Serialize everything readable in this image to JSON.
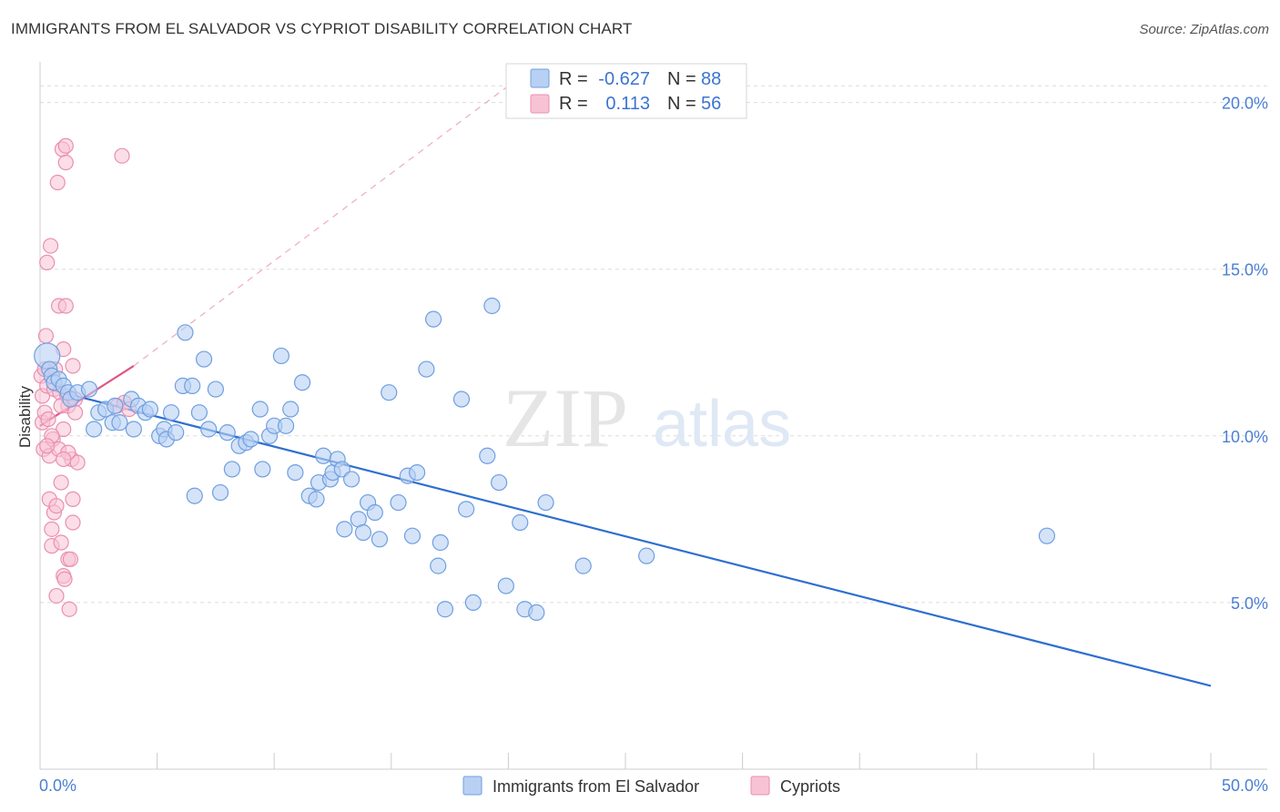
{
  "title": "IMMIGRANTS FROM EL SALVADOR VS CYPRIOT DISABILITY CORRELATION CHART",
  "source": "Source: ZipAtlas.com",
  "watermark": {
    "zip": "ZIP",
    "atlas": "atlas"
  },
  "colors": {
    "blue_fill": "#b8d0f3",
    "blue_stroke": "#6f9fe0",
    "blue_line": "#2e6fd0",
    "pink_fill": "#f7c3d4",
    "pink_stroke": "#ea8fb0",
    "pink_line": "#e05585",
    "grid": "#dcdcdc",
    "tick_text": "#4a7fd4"
  },
  "legend_top": {
    "rows": [
      {
        "r_label": "R =",
        "r_value": "-0.627",
        "n_label": "N =",
        "n_value": "88"
      },
      {
        "r_label": "R =",
        "r_value": "0.113",
        "n_label": "N =",
        "n_value": "56"
      }
    ]
  },
  "chart_data": {
    "type": "scatter",
    "title": "IMMIGRANTS FROM EL SALVADOR VS CYPRIOT DISABILITY CORRELATION CHART",
    "xlabel": "",
    "ylabel": "Disability",
    "xlim": [
      0,
      50
    ],
    "ylim": [
      0,
      21
    ],
    "x_tick_labels": [
      "0.0%",
      "50.0%"
    ],
    "y_ticks": [
      5,
      10,
      15,
      20
    ],
    "y_tick_labels": [
      "5.0%",
      "10.0%",
      "15.0%",
      "20.0%"
    ],
    "grid": "horizontal dashed",
    "legend": "bottom-center",
    "series": [
      {
        "name": "Immigrants from El Salvador",
        "color": "#b8d0f3",
        "R": -0.627,
        "N": 88,
        "trend": {
          "x": [
            0.4,
            50.0
          ],
          "y": [
            11.4,
            2.5
          ]
        },
        "points": [
          [
            0.3,
            12.4
          ],
          [
            0.4,
            12.0
          ],
          [
            0.5,
            11.8
          ],
          [
            0.6,
            11.6
          ],
          [
            0.8,
            11.7
          ],
          [
            1.0,
            11.5
          ],
          [
            1.2,
            11.3
          ],
          [
            1.3,
            11.1
          ],
          [
            1.6,
            11.3
          ],
          [
            2.1,
            11.4
          ],
          [
            2.3,
            10.2
          ],
          [
            2.5,
            10.7
          ],
          [
            2.8,
            10.8
          ],
          [
            3.2,
            10.9
          ],
          [
            3.1,
            10.4
          ],
          [
            3.4,
            10.4
          ],
          [
            3.9,
            11.1
          ],
          [
            4.0,
            10.2
          ],
          [
            4.2,
            10.9
          ],
          [
            4.5,
            10.7
          ],
          [
            4.7,
            10.8
          ],
          [
            5.1,
            10.0
          ],
          [
            5.3,
            10.2
          ],
          [
            5.4,
            9.9
          ],
          [
            5.6,
            10.7
          ],
          [
            5.8,
            10.1
          ],
          [
            6.1,
            11.5
          ],
          [
            6.2,
            13.1
          ],
          [
            6.5,
            11.5
          ],
          [
            6.6,
            8.2
          ],
          [
            6.8,
            10.7
          ],
          [
            7.0,
            12.3
          ],
          [
            7.2,
            10.2
          ],
          [
            7.5,
            11.4
          ],
          [
            7.7,
            8.3
          ],
          [
            8.0,
            10.1
          ],
          [
            8.2,
            9.0
          ],
          [
            8.5,
            9.7
          ],
          [
            8.8,
            9.8
          ],
          [
            9.0,
            9.9
          ],
          [
            9.4,
            10.8
          ],
          [
            9.5,
            9.0
          ],
          [
            9.8,
            10.0
          ],
          [
            10.0,
            10.3
          ],
          [
            10.3,
            12.4
          ],
          [
            10.5,
            10.3
          ],
          [
            10.7,
            10.8
          ],
          [
            10.9,
            8.9
          ],
          [
            11.2,
            11.6
          ],
          [
            11.5,
            8.2
          ],
          [
            11.8,
            8.1
          ],
          [
            11.9,
            8.6
          ],
          [
            12.1,
            9.4
          ],
          [
            12.4,
            8.7
          ],
          [
            12.5,
            8.9
          ],
          [
            12.7,
            9.3
          ],
          [
            12.9,
            9.0
          ],
          [
            13.0,
            7.2
          ],
          [
            13.3,
            8.7
          ],
          [
            13.6,
            7.5
          ],
          [
            13.8,
            7.1
          ],
          [
            14.0,
            8.0
          ],
          [
            14.3,
            7.7
          ],
          [
            14.5,
            6.9
          ],
          [
            14.9,
            11.3
          ],
          [
            15.3,
            8.0
          ],
          [
            15.7,
            8.8
          ],
          [
            15.9,
            7.0
          ],
          [
            16.1,
            8.9
          ],
          [
            16.5,
            12.0
          ],
          [
            16.8,
            13.5
          ],
          [
            17.1,
            6.8
          ],
          [
            17.0,
            6.1
          ],
          [
            17.3,
            4.8
          ],
          [
            18.0,
            11.1
          ],
          [
            18.2,
            7.8
          ],
          [
            18.5,
            5.0
          ],
          [
            19.1,
            9.4
          ],
          [
            19.3,
            13.9
          ],
          [
            19.6,
            8.6
          ],
          [
            19.9,
            5.5
          ],
          [
            20.5,
            7.4
          ],
          [
            20.7,
            4.8
          ],
          [
            21.2,
            4.7
          ],
          [
            21.6,
            8.0
          ],
          [
            23.2,
            6.1
          ],
          [
            25.9,
            6.4
          ],
          [
            43.0,
            7.0
          ]
        ]
      },
      {
        "name": "Cypriots",
        "color": "#f7c3d4",
        "R": 0.113,
        "N": 56,
        "trend": {
          "x": [
            0.0,
            4.0
          ],
          "y": [
            10.3,
            12.1
          ]
        },
        "trend_dashed": {
          "x": [
            4.0,
            20.0
          ],
          "y": [
            12.1,
            20.5
          ]
        },
        "points": [
          [
            0.05,
            11.8
          ],
          [
            0.1,
            11.2
          ],
          [
            0.1,
            10.4
          ],
          [
            0.15,
            9.6
          ],
          [
            0.2,
            10.7
          ],
          [
            0.2,
            12.0
          ],
          [
            0.25,
            13.0
          ],
          [
            0.3,
            15.2
          ],
          [
            0.3,
            11.5
          ],
          [
            0.35,
            10.5
          ],
          [
            0.4,
            9.4
          ],
          [
            0.4,
            8.1
          ],
          [
            0.45,
            15.7
          ],
          [
            0.5,
            6.7
          ],
          [
            0.5,
            7.2
          ],
          [
            0.55,
            9.9
          ],
          [
            0.6,
            11.4
          ],
          [
            0.6,
            7.7
          ],
          [
            0.65,
            12.0
          ],
          [
            0.7,
            7.9
          ],
          [
            0.7,
            5.2
          ],
          [
            0.75,
            17.6
          ],
          [
            0.8,
            13.9
          ],
          [
            0.8,
            9.6
          ],
          [
            0.85,
            11.3
          ],
          [
            0.9,
            8.6
          ],
          [
            0.9,
            6.8
          ],
          [
            0.95,
            18.6
          ],
          [
            1.0,
            12.6
          ],
          [
            1.0,
            5.8
          ],
          [
            1.05,
            5.7
          ],
          [
            1.1,
            18.2
          ],
          [
            1.1,
            18.7
          ],
          [
            1.1,
            13.9
          ],
          [
            1.15,
            11.2
          ],
          [
            1.2,
            10.9
          ],
          [
            1.2,
            6.3
          ],
          [
            1.25,
            4.8
          ],
          [
            1.3,
            6.3
          ],
          [
            1.35,
            9.3
          ],
          [
            1.4,
            12.1
          ],
          [
            1.4,
            7.4
          ],
          [
            1.5,
            11.1
          ],
          [
            1.6,
            9.2
          ],
          [
            1.2,
            9.5
          ],
          [
            1.0,
            10.2
          ],
          [
            0.9,
            10.9
          ],
          [
            1.4,
            8.1
          ],
          [
            1.0,
            9.3
          ],
          [
            0.5,
            10.0
          ],
          [
            0.3,
            9.7
          ],
          [
            1.5,
            10.7
          ],
          [
            3.3,
            10.9
          ],
          [
            3.5,
            18.4
          ],
          [
            3.6,
            11.0
          ],
          [
            3.8,
            10.8
          ]
        ]
      }
    ]
  },
  "legend_bottom": [
    {
      "label": "Immigrants from El Salvador"
    },
    {
      "label": "Cypriots"
    }
  ]
}
